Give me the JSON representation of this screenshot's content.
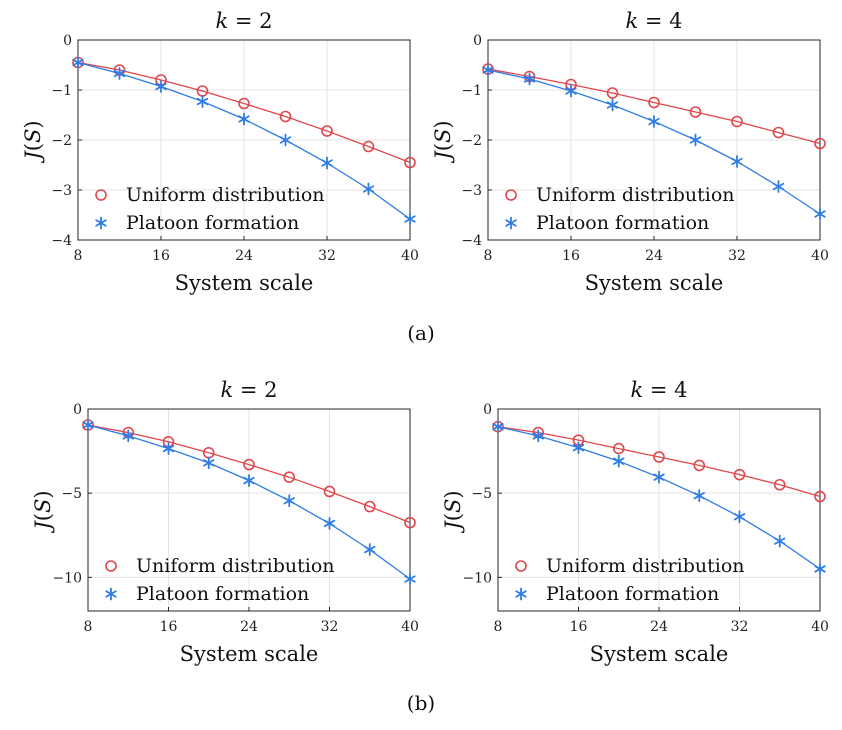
{
  "figure": {
    "labels": [
      "(a)",
      "(b)"
    ]
  },
  "legend": {
    "uniform": "Uniform distribution",
    "platoon": "Platoon formation"
  },
  "colors": {
    "uniform": "#e0474c",
    "platoon": "#2e7ce6",
    "grid": "#e3e3e3"
  },
  "chart_data": [
    {
      "type": "line",
      "panel": "a",
      "title": "k = 2",
      "xlabel": "System scale",
      "ylabel": "J(S)",
      "xlim": [
        8,
        40
      ],
      "ylim": [
        -4,
        0
      ],
      "xticks": [
        8,
        16,
        24,
        32,
        40
      ],
      "yticks": [
        0,
        -1,
        -2,
        -3,
        -4
      ],
      "grid": true,
      "legend_position": "bottom-left",
      "x": [
        8,
        12,
        16,
        20,
        24,
        28,
        32,
        36,
        40
      ],
      "series": [
        {
          "name": "Uniform distribution",
          "marker": "circle",
          "values": [
            -0.45,
            -0.6,
            -0.8,
            -1.02,
            -1.27,
            -1.53,
            -1.82,
            -2.13,
            -2.45
          ]
        },
        {
          "name": "Platoon formation",
          "marker": "asterisk",
          "values": [
            -0.45,
            -0.67,
            -0.93,
            -1.23,
            -1.58,
            -2.0,
            -2.46,
            -2.98,
            -3.58
          ]
        }
      ]
    },
    {
      "type": "line",
      "panel": "a",
      "title": "k = 4",
      "xlabel": "System scale",
      "ylabel": "J(S)",
      "xlim": [
        8,
        40
      ],
      "ylim": [
        -4,
        0
      ],
      "xticks": [
        8,
        16,
        24,
        32,
        40
      ],
      "yticks": [
        0,
        -1,
        -2,
        -3,
        -4
      ],
      "grid": true,
      "legend_position": "bottom-left",
      "x": [
        8,
        12,
        16,
        20,
        24,
        28,
        32,
        36,
        40
      ],
      "series": [
        {
          "name": "Uniform distribution",
          "marker": "circle",
          "values": [
            -0.58,
            -0.73,
            -0.89,
            -1.06,
            -1.25,
            -1.44,
            -1.63,
            -1.85,
            -2.07
          ]
        },
        {
          "name": "Platoon formation",
          "marker": "asterisk",
          "values": [
            -0.6,
            -0.78,
            -1.02,
            -1.3,
            -1.63,
            -2.0,
            -2.43,
            -2.93,
            -3.48
          ]
        }
      ]
    },
    {
      "type": "line",
      "panel": "b",
      "title": "k = 2",
      "xlabel": "System scale",
      "ylabel": "J(S)",
      "xlim": [
        8,
        40
      ],
      "ylim": [
        -12,
        0
      ],
      "xticks": [
        8,
        16,
        24,
        32,
        40
      ],
      "yticks": [
        0,
        -5,
        -10
      ],
      "grid": true,
      "legend_position": "bottom-left",
      "x": [
        8,
        12,
        16,
        20,
        24,
        28,
        32,
        36,
        40
      ],
      "series": [
        {
          "name": "Uniform distribution",
          "marker": "circle",
          "values": [
            -0.95,
            -1.4,
            -1.95,
            -2.6,
            -3.3,
            -4.05,
            -4.9,
            -5.8,
            -6.75
          ]
        },
        {
          "name": "Platoon formation",
          "marker": "asterisk",
          "values": [
            -0.95,
            -1.6,
            -2.35,
            -3.2,
            -4.25,
            -5.45,
            -6.8,
            -8.35,
            -10.1
          ]
        }
      ]
    },
    {
      "type": "line",
      "panel": "b",
      "title": "k = 4",
      "xlabel": "System scale",
      "ylabel": "J(S)",
      "xlim": [
        8,
        40
      ],
      "ylim": [
        -12,
        0
      ],
      "xticks": [
        8,
        16,
        24,
        32,
        40
      ],
      "yticks": [
        0,
        -5,
        -10
      ],
      "grid": true,
      "legend_position": "bottom-left",
      "x": [
        8,
        12,
        16,
        20,
        24,
        28,
        32,
        36,
        40
      ],
      "series": [
        {
          "name": "Uniform distribution",
          "marker": "circle",
          "values": [
            -1.05,
            -1.4,
            -1.85,
            -2.35,
            -2.85,
            -3.35,
            -3.9,
            -4.5,
            -5.2
          ]
        },
        {
          "name": "Platoon formation",
          "marker": "asterisk",
          "values": [
            -1.05,
            -1.6,
            -2.3,
            -3.1,
            -4.05,
            -5.15,
            -6.4,
            -7.85,
            -9.5
          ]
        }
      ]
    }
  ]
}
